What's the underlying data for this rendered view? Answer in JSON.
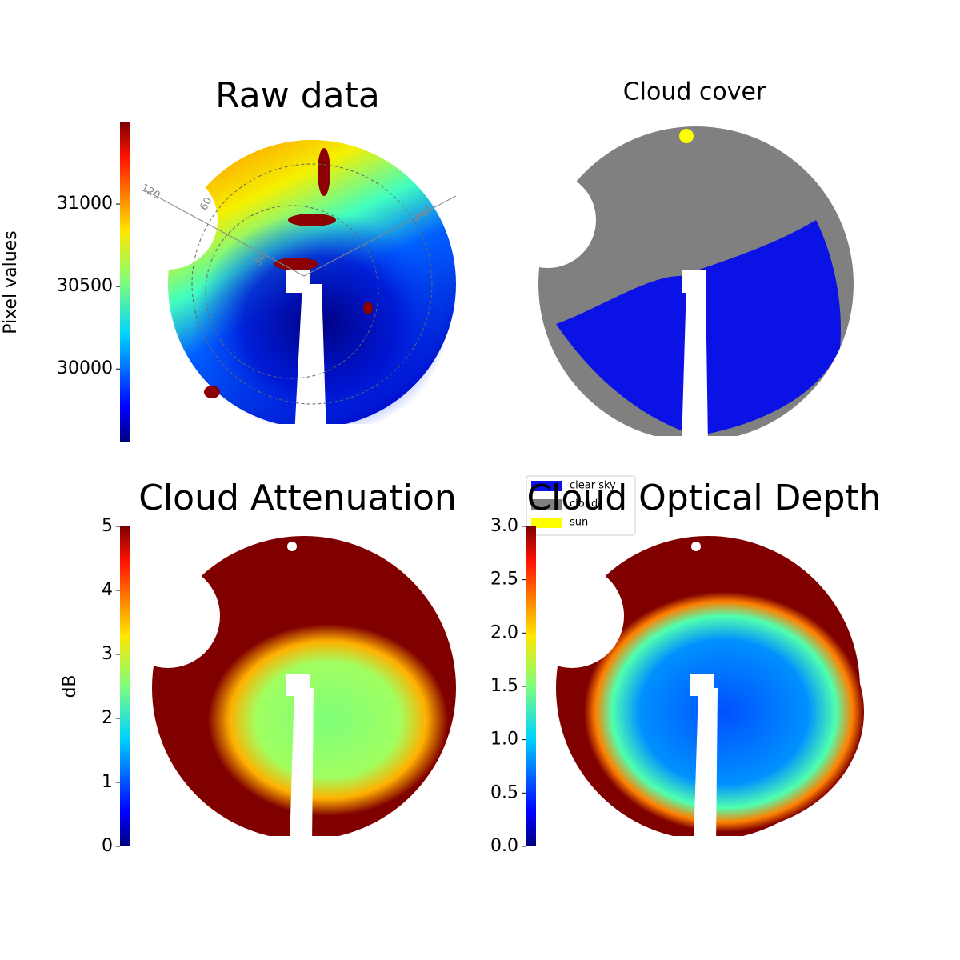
{
  "chart_data": [
    {
      "type": "image",
      "title": "Raw data",
      "colormap": "jet",
      "ylabel": "Pixel values",
      "ylim": [
        29555,
        31495
      ],
      "yticks": [
        30000,
        30500,
        31000
      ],
      "annotations": [
        "120",
        "60",
        "30",
        "240"
      ]
    },
    {
      "type": "image",
      "title": "Cloud cover",
      "categories": [
        "clear sky",
        "cloud",
        "sun"
      ],
      "colors": [
        "#0a12e6",
        "#808080",
        "#ffff00"
      ]
    },
    {
      "type": "image",
      "title": "Cloud Attenuation",
      "colormap": "jet",
      "ylabel": "dB",
      "ylim": [
        0,
        5
      ],
      "yticks": [
        0,
        1,
        2,
        3,
        4,
        5
      ]
    },
    {
      "type": "image",
      "title": "Cloud Optical Depth",
      "colormap": "jet",
      "ylim": [
        0,
        3
      ],
      "yticks": [
        {
          "value": 0,
          "label": "0.0"
        },
        0.5,
        {
          "value": 1,
          "label": "1.0"
        },
        1.5,
        {
          "value": 2,
          "label": "2.0"
        },
        2.5,
        {
          "value": 3,
          "label": "3.0"
        }
      ]
    }
  ]
}
